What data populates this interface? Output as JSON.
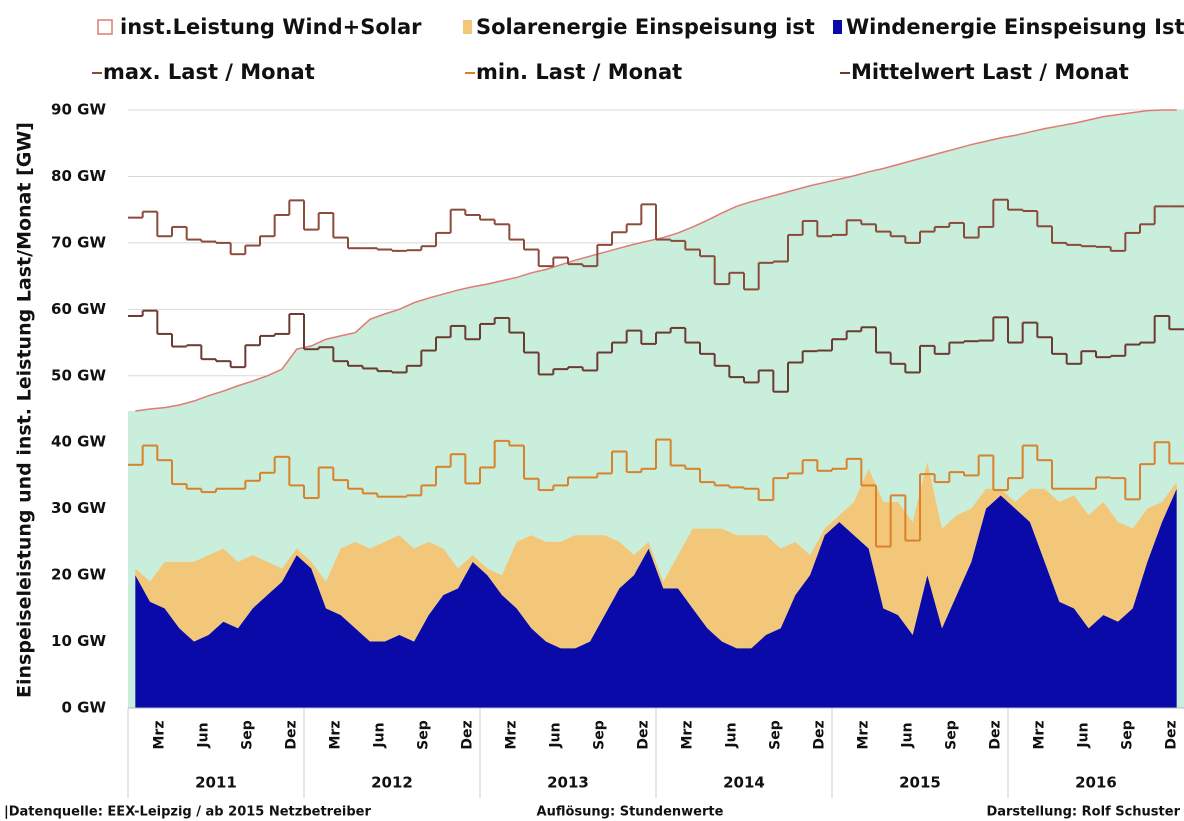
{
  "chart_data": {
    "type": "combo",
    "y_label": "Einspeiseleistung und  inst. Leistung  Last/Monat  [GW]",
    "ylim": [
      0,
      90
    ],
    "yticks": [
      {
        "value": 0,
        "label": "0 GW"
      },
      {
        "value": 10,
        "label": "10 GW"
      },
      {
        "value": 20,
        "label": "20 GW"
      },
      {
        "value": 30,
        "label": "30 GW"
      },
      {
        "value": 40,
        "label": "40 GW"
      },
      {
        "value": 50,
        "label": "50 GW"
      },
      {
        "value": 60,
        "label": "60 GW"
      },
      {
        "value": 70,
        "label": "70 GW"
      },
      {
        "value": 80,
        "label": "80 GW"
      },
      {
        "value": 90,
        "label": "90 GW"
      }
    ],
    "grid": true,
    "categories": [
      null,
      null,
      "Mrz",
      null,
      null,
      "Jun",
      null,
      null,
      "Sep",
      null,
      null,
      "Dez",
      null,
      null,
      "Mrz",
      null,
      null,
      "Jun",
      null,
      null,
      "Sep",
      null,
      null,
      "Dez",
      null,
      null,
      "Mrz",
      null,
      null,
      "Jun",
      null,
      null,
      "Sep",
      null,
      null,
      "Dez",
      null,
      null,
      "Mrz",
      null,
      null,
      "Jun",
      null,
      null,
      "Sep",
      null,
      null,
      "Dez",
      null,
      null,
      "Mrz",
      null,
      null,
      "Jun",
      null,
      null,
      "Sep",
      null,
      null,
      "Dez",
      null,
      null,
      "Mrz",
      null,
      null,
      "Jun",
      null,
      null,
      "Sep",
      null,
      null,
      "Dez"
    ],
    "years": [
      "2011",
      "2012",
      "2013",
      "2014",
      "2015",
      "2016"
    ],
    "series": [
      {
        "name": "inst.Leistung Wind+Solar",
        "type": "capacity",
        "color": "#e07b74",
        "fill": "#c9eedb",
        "values": [
          44.7,
          45,
          45.2,
          45.6,
          46.2,
          47,
          47.7,
          48.5,
          49.2,
          50,
          51,
          54,
          54.5,
          55.5,
          56,
          56.5,
          58.5,
          59.3,
          60,
          61,
          61.7,
          62.3,
          62.9,
          63.4,
          63.8,
          64.3,
          64.8,
          65.5,
          66,
          66.7,
          67.4,
          68,
          68.6,
          69.2,
          69.8,
          70.3,
          70.8,
          71.5,
          72.4,
          73.4,
          74.5,
          75.5,
          76.2,
          76.8,
          77.4,
          78,
          78.6,
          79.1,
          79.6,
          80.1,
          80.7,
          81.2,
          81.8,
          82.4,
          83,
          83.6,
          84.2,
          84.8,
          85.3,
          85.8,
          86.2,
          86.7,
          87.2,
          87.6,
          88,
          88.5,
          89,
          89.3,
          89.6,
          89.9,
          90,
          90
        ]
      },
      {
        "name": "Solarenergie Einspeisung ist",
        "type": "area",
        "color": "#f2c77a",
        "values": [
          1,
          3,
          7,
          10,
          12,
          12,
          11,
          10,
          8,
          5,
          2,
          1,
          1,
          4,
          10,
          13,
          14,
          15,
          15,
          14,
          11,
          7,
          3,
          1,
          1,
          3,
          10,
          14,
          15,
          16,
          17,
          16,
          12,
          7,
          3,
          1,
          1,
          5,
          12,
          15,
          17,
          17,
          17,
          15,
          12,
          8,
          3,
          1,
          1,
          5,
          12,
          16,
          17,
          17,
          17,
          15,
          12,
          8,
          3,
          1,
          1,
          5,
          11,
          15,
          17,
          17,
          17,
          15,
          12,
          8,
          3,
          1
        ]
      },
      {
        "name": "Windenergie Einspeisung Ist",
        "type": "area",
        "color": "#0a0aa8",
        "values": [
          20,
          16,
          15,
          12,
          10,
          11,
          13,
          12,
          15,
          17,
          19,
          23,
          21,
          15,
          14,
          12,
          10,
          10,
          11,
          10,
          14,
          17,
          18,
          22,
          20,
          17,
          15,
          12,
          10,
          9,
          9,
          10,
          14,
          18,
          20,
          24,
          18,
          18,
          15,
          12,
          10,
          9,
          9,
          11,
          12,
          17,
          20,
          26,
          28,
          26,
          24,
          15,
          14,
          11,
          20,
          12,
          17,
          22,
          30,
          32,
          30,
          28,
          22,
          16,
          15,
          12,
          14,
          13,
          15,
          22,
          28,
          33
        ]
      },
      {
        "name": "max. Last / Monat",
        "type": "step",
        "color": "#8b4a3a",
        "values": [
          73.8,
          74.7,
          71,
          72.4,
          70.5,
          70.2,
          70,
          68.3,
          69.6,
          71,
          74.2,
          76.4,
          72,
          74.5,
          70.8,
          69.2,
          69.2,
          69,
          68.8,
          68.9,
          69.5,
          71.5,
          75,
          74.2,
          73.5,
          72.8,
          70.5,
          69,
          66.5,
          67.8,
          66.8,
          66.5,
          69.7,
          71.6,
          72.8,
          75.8,
          70.5,
          70.3,
          69,
          68,
          63.8,
          65.5,
          63,
          67,
          67.2,
          71.2,
          73.3,
          71,
          71.2,
          73.4,
          72.8,
          71.7,
          71,
          70,
          71.7,
          72.4,
          73,
          70.8,
          72.4,
          76.5,
          75,
          74.8,
          72.5,
          70,
          69.7,
          69.5,
          69.4,
          68.8,
          71.5,
          72.8,
          75.5,
          75.5
        ]
      },
      {
        "name": "min. Last / Monat",
        "type": "step",
        "color": "#d9822b",
        "values": [
          36.6,
          39.5,
          37.3,
          33.7,
          33,
          32.5,
          33,
          33,
          34.2,
          35.4,
          37.8,
          33.5,
          31.6,
          36.2,
          34.3,
          33,
          32.3,
          31.8,
          31.8,
          32,
          33.5,
          36.3,
          38.2,
          33.8,
          36.2,
          40.2,
          39.5,
          34.5,
          32.8,
          33.5,
          34.7,
          34.7,
          35.3,
          38.6,
          35.5,
          36,
          40.4,
          36.5,
          36,
          34,
          33.5,
          33.2,
          33,
          31.3,
          34.6,
          35.3,
          37.3,
          35.7,
          36,
          37.5,
          33.5,
          24.3,
          32,
          25.2,
          35.2,
          34,
          35.5,
          35,
          38,
          32.8,
          34.6,
          39.5,
          37.3,
          33,
          33,
          33,
          34.7,
          34.6,
          31.4,
          36.7,
          40,
          36.8
        ]
      },
      {
        "name": "Mittelwert Last  / Monat",
        "type": "step",
        "color": "#6b3a30",
        "values": [
          59,
          59.8,
          56.3,
          54.4,
          54.6,
          52.5,
          52.2,
          51.3,
          54.6,
          56,
          56.3,
          59.3,
          54,
          54.3,
          52.2,
          51.5,
          51.1,
          50.7,
          50.5,
          51.5,
          53.8,
          55.8,
          57.5,
          55.5,
          57.8,
          58.7,
          56.5,
          53.5,
          50.2,
          51,
          51.3,
          50.8,
          53.5,
          55,
          56.8,
          54.8,
          56.5,
          57.2,
          55,
          53.3,
          51.5,
          49.8,
          49,
          50.8,
          47.6,
          52,
          53.7,
          53.8,
          55.5,
          56.7,
          57.3,
          53.5,
          51.8,
          50.5,
          54.5,
          53.3,
          55,
          55.2,
          55.3,
          58.8,
          55,
          58,
          55.8,
          53.3,
          51.8,
          53.7,
          52.8,
          53,
          54.7,
          55,
          59,
          57
        ]
      }
    ],
    "footer": {
      "source": "|Datenquelle:  EEX-Leipzig   /  ab 2015 Netzbetreiber",
      "resolution": "Auflösung: Stundenwerte",
      "author": "Darstellung: Rolf Schuster"
    }
  }
}
